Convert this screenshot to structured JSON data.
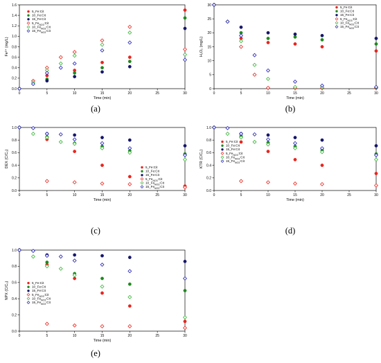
{
  "colors": {
    "fe_cit_5": "#e8261f",
    "fe_cit_10": "#1f8a1f",
    "fe_cit_15": "#16166b",
    "feno3_cit_5": "#e8261f",
    "feno3_cit_10": "#36b336",
    "feno3_cit_15": "#1f1fb5"
  },
  "chart_data": [
    {
      "type": "scatter",
      "panel_label": "(a)",
      "xlabel": "Time (min)",
      "ylabel": "Fe²⁺ (mg/L)",
      "xlim": [
        0,
        30
      ],
      "ylim": [
        0,
        1.6
      ],
      "xticks": [
        "0",
        "5",
        "10",
        "15",
        "20",
        "25",
        "30"
      ],
      "yticks": [
        "0.0",
        "0.2",
        "0.4",
        "0.6",
        "0.8",
        "1.0",
        "1.2",
        "1.4",
        "1.6"
      ],
      "grid": false,
      "legend": {
        "placement": "top-left",
        "entries": [
          "5_Fe:Cit",
          "10_Fe:Cit",
          "15_Fe:Cit",
          "5_Fe_NO3:Cit",
          "10_Fe_NO3:Cit",
          "15_Fe_NO3:Cit"
        ]
      },
      "series": [
        {
          "name": "5_Fe:Cit",
          "marker": "filled",
          "color_key": "fe_cit_5",
          "x": [
            0,
            5,
            10,
            15,
            20,
            30
          ],
          "y": [
            0,
            0.25,
            0.35,
            0.5,
            0.6,
            1.5
          ]
        },
        {
          "name": "10_Fe:Cit",
          "marker": "filled",
          "color_key": "fe_cit_10",
          "x": [
            0,
            5,
            10,
            15,
            20,
            30
          ],
          "y": [
            0,
            0.18,
            0.3,
            0.4,
            0.52,
            1.35
          ]
        },
        {
          "name": "15_Fe:Cit",
          "marker": "filled",
          "color_key": "fe_cit_15",
          "x": [
            0,
            5,
            10,
            15,
            20,
            30
          ],
          "y": [
            0,
            0.15,
            0.23,
            0.32,
            0.42,
            1.15
          ]
        },
        {
          "name": "5_Fe_NO3:Cit",
          "marker": "open",
          "color_key": "feno3_cit_5",
          "x": [
            0,
            2.5,
            5,
            7.5,
            10,
            15,
            20,
            30
          ],
          "y": [
            0,
            0.15,
            0.4,
            0.6,
            0.7,
            0.92,
            1.18,
            0.75
          ]
        },
        {
          "name": "10_Fe_NO3:Cit",
          "marker": "open",
          "color_key": "feno3_cit_10",
          "x": [
            0,
            2.5,
            5,
            7.5,
            10,
            15,
            20,
            30
          ],
          "y": [
            0,
            0.12,
            0.35,
            0.48,
            0.63,
            0.84,
            1.07,
            0.65
          ]
        },
        {
          "name": "15_Fe_NO3:Cit",
          "marker": "open",
          "color_key": "feno3_cit_15",
          "x": [
            0,
            2.5,
            5,
            7.5,
            10,
            15,
            20,
            30
          ],
          "y": [
            0,
            0.09,
            0.3,
            0.4,
            0.48,
            0.73,
            0.88,
            0.55
          ]
        }
      ]
    },
    {
      "type": "scatter",
      "panel_label": "(b)",
      "xlabel": "Time (min)",
      "ylabel": "H₂O₂ (mg/L)",
      "xlim": [
        0,
        30
      ],
      "ylim": [
        0,
        30
      ],
      "xticks": [
        "0",
        "5",
        "10",
        "15",
        "20",
        "25",
        "30"
      ],
      "yticks": [
        "0",
        "5",
        "10",
        "15",
        "20",
        "25",
        "30"
      ],
      "grid": false,
      "legend": {
        "placement": "top-right",
        "entries": [
          "5_Fe:Cit",
          "10_Fe:Cit",
          "15_Fe:Cit",
          "5_Fe_NO3:Cit",
          "10_Fe_NO3:Cit",
          "15_Fe_NO3:Cit"
        ]
      },
      "series": [
        {
          "name": "5_Fe:Cit",
          "marker": "filled",
          "color_key": "fe_cit_5",
          "x": [
            0,
            5,
            10,
            15,
            20,
            30
          ],
          "y": [
            30,
            18,
            16.5,
            16,
            15,
            13.5
          ]
        },
        {
          "name": "10_Fe:Cit",
          "marker": "filled",
          "color_key": "fe_cit_10",
          "x": [
            0,
            5,
            10,
            15,
            20,
            30
          ],
          "y": [
            30,
            20,
            18,
            18.5,
            17.5,
            16
          ]
        },
        {
          "name": "15_Fe:Cit",
          "marker": "filled",
          "color_key": "fe_cit_15",
          "x": [
            0,
            5,
            10,
            15,
            20,
            30
          ],
          "y": [
            30,
            22,
            20,
            19.5,
            19,
            18
          ]
        },
        {
          "name": "5_Fe_NO3:Cit",
          "marker": "open",
          "color_key": "feno3_cit_5",
          "x": [
            0,
            2.5,
            5,
            7.5,
            10,
            15,
            20,
            30
          ],
          "y": [
            30,
            24,
            15,
            5,
            0.3,
            0.2,
            0.2,
            0.2
          ]
        },
        {
          "name": "10_Fe_NO3:Cit",
          "marker": "open",
          "color_key": "feno3_cit_10",
          "x": [
            0,
            2.5,
            5,
            7.5,
            10,
            15,
            20,
            30
          ],
          "y": [
            30,
            24,
            17,
            8.5,
            3.5,
            0.6,
            0.5,
            0.4
          ]
        },
        {
          "name": "15_Fe_NO3:Cit",
          "marker": "open",
          "color_key": "feno3_cit_15",
          "x": [
            0,
            2.5,
            5,
            7.5,
            10,
            15,
            20,
            30
          ],
          "y": [
            30,
            24,
            19,
            12,
            6.5,
            2.5,
            1.1,
            0.6
          ]
        }
      ]
    },
    {
      "type": "scatter",
      "panel_label": "(c)",
      "xlabel": "Time (min)",
      "ylabel": "DEX (C/C₀)",
      "xlim": [
        0,
        30
      ],
      "ylim": [
        0,
        1.0
      ],
      "xticks": [
        "0",
        "5",
        "10",
        "15",
        "20",
        "25",
        "30"
      ],
      "yticks": [
        "0.0",
        "0.2",
        "0.4",
        "0.6",
        "0.8",
        "1.0"
      ],
      "grid": false,
      "legend": {
        "placement": "center-right",
        "entries": [
          "5_Fe:Cit",
          "10_Fe:Cit",
          "15_Fe:Cit",
          "5_Fe_NO3:Cit",
          "10_Fe_NO3:Cit",
          "15_Fe_NO3:Cit"
        ]
      },
      "series": [
        {
          "name": "5_Fe:Cit",
          "marker": "filled",
          "color_key": "fe_cit_5",
          "x": [
            0,
            5,
            10,
            15,
            20,
            30
          ],
          "y": [
            1.0,
            0.81,
            0.62,
            0.4,
            0.22,
            0.07
          ]
        },
        {
          "name": "10_Fe:Cit",
          "marker": "filled",
          "color_key": "fe_cit_10",
          "x": [
            0,
            5,
            10,
            15,
            20,
            30
          ],
          "y": [
            1.0,
            0.85,
            0.75,
            0.7,
            0.63,
            0.58
          ]
        },
        {
          "name": "15_Fe:Cit",
          "marker": "filled",
          "color_key": "fe_cit_15",
          "x": [
            0,
            5,
            10,
            15,
            20,
            30
          ],
          "y": [
            1.0,
            0.9,
            0.88,
            0.84,
            0.8,
            0.71
          ]
        },
        {
          "name": "5_Fe_NO3:Cit",
          "marker": "open",
          "color_key": "feno3_cit_5",
          "x": [
            0,
            5,
            10,
            15,
            20,
            30
          ],
          "y": [
            1.0,
            0.15,
            0.13,
            0.11,
            0.1,
            0.05
          ]
        },
        {
          "name": "10_Fe_NO3:Cit",
          "marker": "open",
          "color_key": "feno3_cit_10",
          "x": [
            0,
            2.5,
            5,
            7.5,
            10,
            15,
            20,
            30
          ],
          "y": [
            1.0,
            0.9,
            0.84,
            0.77,
            0.74,
            0.67,
            0.6,
            0.49
          ]
        },
        {
          "name": "15_Fe_NO3:Cit",
          "marker": "open",
          "color_key": "feno3_cit_15",
          "x": [
            0,
            2.5,
            5,
            7.5,
            10,
            15,
            20,
            30
          ],
          "y": [
            1.0,
            0.99,
            0.9,
            0.89,
            0.81,
            0.75,
            0.67,
            0.56
          ]
        }
      ]
    },
    {
      "type": "scatter",
      "panel_label": "(d)",
      "xlabel": "Time (min)",
      "ylabel": "KTR (C/C₀)",
      "xlim": [
        0,
        30
      ],
      "ylim": [
        0,
        1.0
      ],
      "xticks": [
        "0",
        "5",
        "10",
        "15",
        "20",
        "25",
        "30"
      ],
      "yticks": [
        "0.0",
        "0.2",
        "0.4",
        "0.6",
        "0.8",
        "1.0"
      ],
      "grid": false,
      "legend": {
        "placement": "top-left",
        "entries": [
          "5_Fe:Cit",
          "10_Fe:Cit",
          "15_Fe:Cit",
          "5_Fe_NO3:Cit",
          "10_Fe_NO3:Cit",
          "15_Fe_NO3:Cit"
        ]
      },
      "series": [
        {
          "name": "5_Fe:Cit",
          "marker": "filled",
          "color_key": "fe_cit_5",
          "x": [
            0,
            5,
            10,
            15,
            20,
            30
          ],
          "y": [
            1.0,
            0.77,
            0.62,
            0.49,
            0.4,
            0.27
          ]
        },
        {
          "name": "10_Fe:Cit",
          "marker": "filled",
          "color_key": "fe_cit_10",
          "x": [
            0,
            5,
            10,
            15,
            20,
            30
          ],
          "y": [
            1.0,
            0.86,
            0.76,
            0.7,
            0.64,
            0.58
          ]
        },
        {
          "name": "15_Fe:Cit",
          "marker": "filled",
          "color_key": "fe_cit_15",
          "x": [
            0,
            5,
            10,
            15,
            20,
            30
          ],
          "y": [
            1.0,
            0.9,
            0.88,
            0.84,
            0.8,
            0.71
          ]
        },
        {
          "name": "5_Fe_NO3:Cit",
          "marker": "open",
          "color_key": "feno3_cit_5",
          "x": [
            0,
            5,
            10,
            15,
            20,
            30
          ],
          "y": [
            1.0,
            0.15,
            0.13,
            0.11,
            0.1,
            0.08
          ]
        },
        {
          "name": "10_Fe_NO3:Cit",
          "marker": "open",
          "color_key": "feno3_cit_10",
          "x": [
            0,
            2.5,
            5,
            7.5,
            10,
            15,
            20,
            30
          ],
          "y": [
            1.0,
            0.9,
            0.84,
            0.77,
            0.73,
            0.67,
            0.61,
            0.49
          ]
        },
        {
          "name": "15_Fe_NO3:Cit",
          "marker": "open",
          "color_key": "feno3_cit_15",
          "x": [
            0,
            2.5,
            5,
            7.5,
            10,
            15,
            20,
            30
          ],
          "y": [
            1.0,
            0.99,
            0.9,
            0.89,
            0.81,
            0.75,
            0.67,
            0.56
          ]
        }
      ]
    },
    {
      "type": "scatter",
      "panel_label": "(e)",
      "xlabel": "Time (min)",
      "ylabel": "NPX (C/C₀)",
      "xlim": [
        0,
        30
      ],
      "ylim": [
        0,
        1.0
      ],
      "xticks": [
        "0",
        "5",
        "10",
        "15",
        "20",
        "25",
        "30"
      ],
      "yticks": [
        "0.0",
        "0.2",
        "0.4",
        "0.6",
        "0.8",
        "1.0"
      ],
      "grid": false,
      "legend": {
        "placement": "center-left",
        "entries": [
          "5_Fe:Cit",
          "10_Fe:Cit",
          "15_Fe:Cit",
          "5_Fe_NO3:Cit",
          "10_Fe_NO3:Cit",
          "15_Fe_NO3:Cit"
        ]
      },
      "series": [
        {
          "name": "5_Fe:Cit",
          "marker": "filled",
          "color_key": "fe_cit_5",
          "x": [
            0,
            5,
            10,
            15,
            20,
            30
          ],
          "y": [
            1.0,
            0.82,
            0.65,
            0.47,
            0.31,
            0.12
          ]
        },
        {
          "name": "10_Fe:Cit",
          "marker": "filled",
          "color_key": "fe_cit_10",
          "x": [
            0,
            5,
            10,
            15,
            20,
            30
          ],
          "y": [
            1.0,
            0.85,
            0.71,
            0.65,
            0.58,
            0.5
          ]
        },
        {
          "name": "15_Fe:Cit",
          "marker": "filled",
          "color_key": "fe_cit_15",
          "x": [
            0,
            5,
            10,
            15,
            20,
            30
          ],
          "y": [
            1.0,
            0.94,
            0.94,
            0.93,
            0.91,
            0.86
          ]
        },
        {
          "name": "5_Fe_NO3:Cit",
          "marker": "open",
          "color_key": "feno3_cit_5",
          "x": [
            0,
            5,
            10,
            15,
            20,
            30
          ],
          "y": [
            1.0,
            0.09,
            0.07,
            0.06,
            0.06,
            0.04
          ]
        },
        {
          "name": "10_Fe_NO3:Cit",
          "marker": "open",
          "color_key": "feno3_cit_10",
          "x": [
            0,
            2.5,
            5,
            7.5,
            10,
            15,
            20,
            30
          ],
          "y": [
            1.0,
            0.92,
            0.8,
            0.77,
            0.69,
            0.55,
            0.42,
            0.17
          ]
        },
        {
          "name": "15_Fe_NO3:Cit",
          "marker": "open",
          "color_key": "feno3_cit_15",
          "x": [
            0,
            2.5,
            5,
            7.5,
            10,
            15,
            20,
            30
          ],
          "y": [
            1.0,
            0.99,
            0.93,
            0.92,
            0.87,
            0.82,
            0.74,
            0.65
          ]
        }
      ]
    }
  ]
}
